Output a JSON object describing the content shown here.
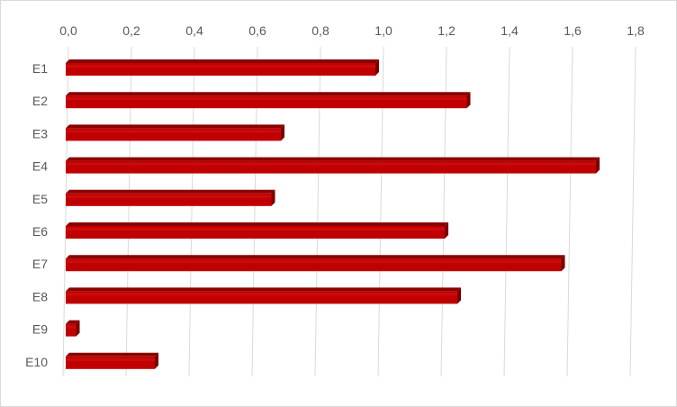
{
  "chart_data": {
    "type": "bar",
    "orientation": "horizontal",
    "style": "3d-bar",
    "title": "",
    "xlabel": "",
    "ylabel": "",
    "categories": [
      "E1",
      "E2",
      "E3",
      "E4",
      "E5",
      "E6",
      "E7",
      "E8",
      "E9",
      "E10"
    ],
    "values": [
      0.98,
      1.27,
      0.68,
      1.68,
      0.65,
      1.2,
      1.57,
      1.24,
      0.03,
      0.28
    ],
    "xlim": [
      0,
      1.8
    ],
    "ticks": [
      "0,0",
      "0,2",
      "0,4",
      "0,6",
      "0,8",
      "1,0",
      "1,2",
      "1,4",
      "1,6",
      "1,8"
    ],
    "x_axis_position": "top",
    "grid": true,
    "legend": "none",
    "colors": {
      "bar_front": "#c00000",
      "bar_top": "#8b0000",
      "bar_side": "#7a0000",
      "grid": "#d9d9d9"
    }
  }
}
